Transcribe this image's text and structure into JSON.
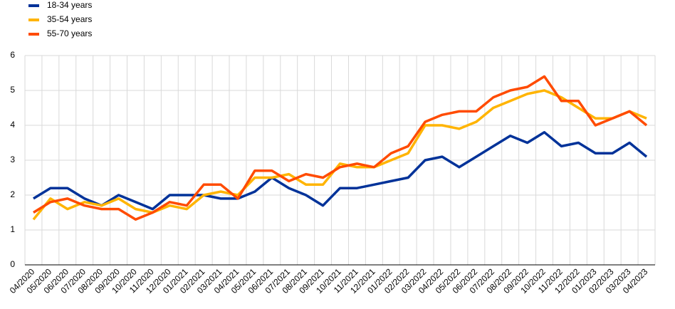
{
  "chart_data": {
    "type": "line",
    "categories": [
      "04/2020",
      "05/2020",
      "06/2020",
      "07/2020",
      "08/2020",
      "09/2020",
      "10/2020",
      "11/2020",
      "12/2020",
      "01/2021",
      "02/2021",
      "03/2021",
      "04/2021",
      "05/2021",
      "06/2021",
      "07/2021",
      "08/2021",
      "09/2021",
      "10/2021",
      "11/2021",
      "12/2021",
      "01/2022",
      "02/2022",
      "03/2022",
      "04/2022",
      "05/2022",
      "06/2022",
      "07/2022",
      "08/2022",
      "09/2022",
      "10/2022",
      "11/2022",
      "12/2022",
      "01/2023",
      "02/2023",
      "03/2023",
      "04/2023"
    ],
    "series": [
      {
        "name": "18-34 years",
        "color": "#003299",
        "values": [
          1.9,
          2.2,
          2.2,
          1.9,
          1.7,
          2.0,
          1.8,
          1.6,
          2.0,
          2.0,
          2.0,
          1.9,
          1.9,
          2.1,
          2.5,
          2.2,
          2.0,
          1.7,
          2.2,
          2.2,
          2.3,
          2.4,
          2.5,
          3.0,
          3.1,
          2.8,
          3.1,
          3.4,
          3.7,
          3.5,
          3.8,
          3.4,
          3.5,
          3.2,
          3.2,
          3.5,
          3.1
        ]
      },
      {
        "name": "35-54 years",
        "color": "#ffb400",
        "values": [
          1.3,
          1.9,
          1.6,
          1.8,
          1.7,
          1.9,
          1.6,
          1.5,
          1.7,
          1.6,
          2.0,
          2.1,
          2.0,
          2.5,
          2.5,
          2.6,
          2.3,
          2.3,
          2.9,
          2.8,
          2.8,
          3.0,
          3.2,
          4.0,
          4.0,
          3.9,
          4.1,
          4.5,
          4.7,
          4.9,
          5.0,
          4.8,
          4.5,
          4.2,
          4.2,
          4.4,
          4.2
        ]
      },
      {
        "name": "55-70 years",
        "color": "#ff4b00",
        "values": [
          1.5,
          1.8,
          1.9,
          1.7,
          1.6,
          1.6,
          1.3,
          1.5,
          1.8,
          1.7,
          2.3,
          2.3,
          1.9,
          2.7,
          2.7,
          2.4,
          2.6,
          2.5,
          2.8,
          2.9,
          2.8,
          3.2,
          3.4,
          4.1,
          4.3,
          4.4,
          4.4,
          4.8,
          5.0,
          5.1,
          5.4,
          4.7,
          4.7,
          4.0,
          4.2,
          4.4,
          4.0
        ]
      }
    ],
    "ylim": [
      0,
      6
    ],
    "yticks": [
      0,
      1,
      2,
      3,
      4,
      5,
      6
    ],
    "grid": true,
    "legend": "top-left"
  }
}
